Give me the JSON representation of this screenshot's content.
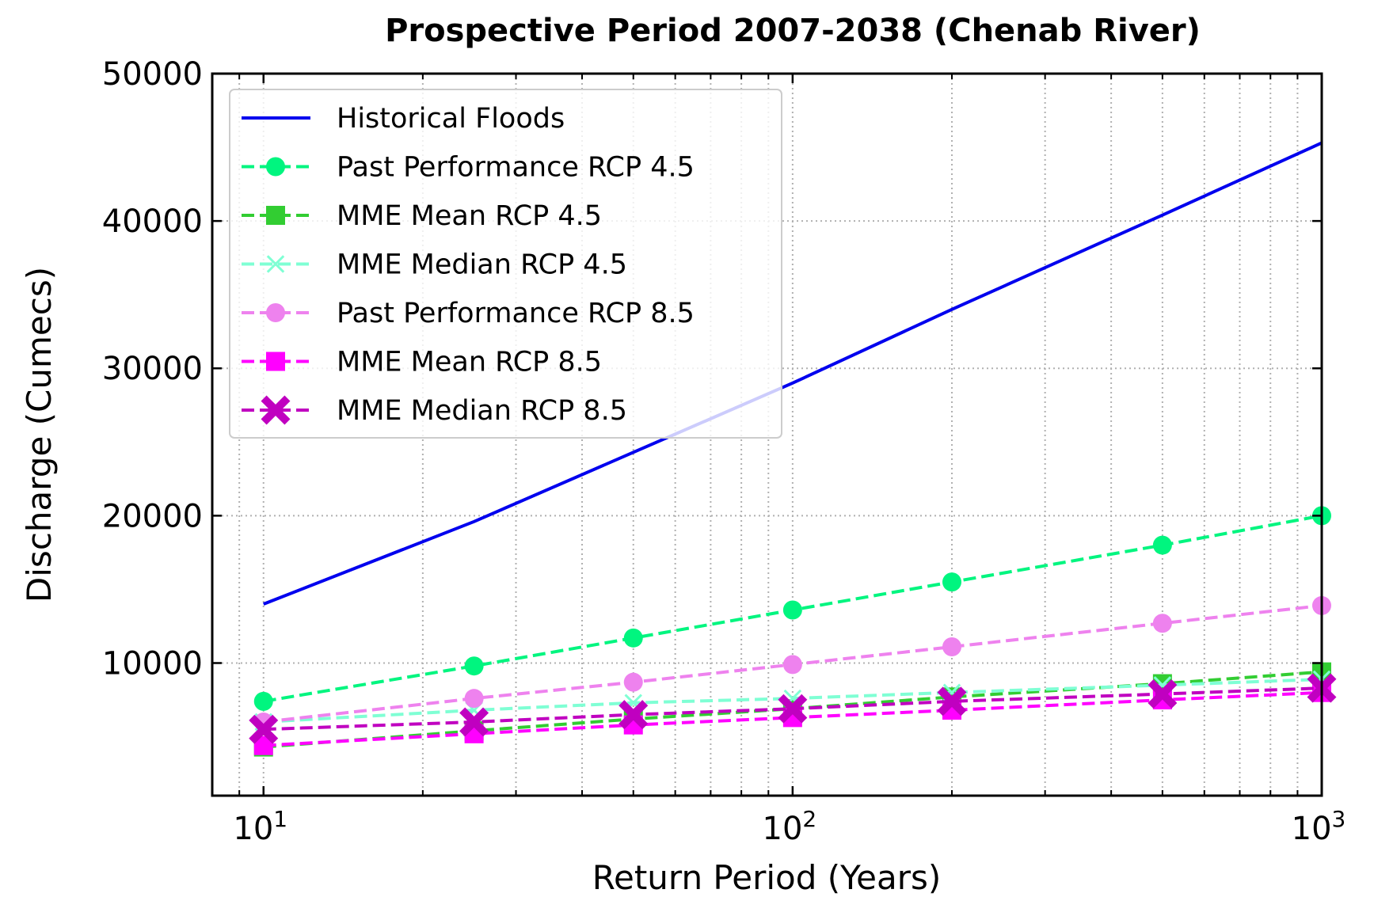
{
  "chart_data": {
    "type": "line",
    "title": "Prospective Period 2007-2038 (Chenab River)",
    "xlabel": "Return Period (Years)",
    "ylabel": "Discharge (Cumecs)",
    "x_scale": "log",
    "xlim": [
      8.0,
      1000
    ],
    "ylim": [
      1000,
      50000
    ],
    "x_ticks": [
      10,
      100,
      1000
    ],
    "x_tick_labels": [
      {
        "base": "10",
        "exp": "1"
      },
      {
        "base": "10",
        "exp": "2"
      },
      {
        "base": "10",
        "exp": "3"
      }
    ],
    "y_ticks": [
      10000,
      20000,
      30000,
      40000,
      50000
    ],
    "y_tick_labels": [
      "10000",
      "20000",
      "30000",
      "40000",
      "50000"
    ],
    "grid": true,
    "legend_position": "upper-left",
    "x": [
      10,
      25,
      50,
      100,
      200,
      500,
      1000
    ],
    "series": [
      {
        "name": "Historical Floods",
        "color": "#0000ee",
        "line": "solid",
        "marker": "none",
        "values": [
          14000,
          19600,
          24300,
          29000,
          34000,
          40400,
          45300
        ]
      },
      {
        "name": "Past Performance RCP 4.5",
        "color": "#00f57f",
        "line": "dashed",
        "marker": "circle",
        "values": [
          7400,
          9800,
          11700,
          13600,
          15500,
          18000,
          20000
        ]
      },
      {
        "name": "MME Mean RCP 4.5",
        "color": "#32cd32",
        "line": "dashed",
        "marker": "square",
        "values": [
          4300,
          5400,
          6200,
          6900,
          7700,
          8600,
          9400
        ]
      },
      {
        "name": "MME Median RCP 4.5",
        "color": "#7fffd4",
        "line": "dashed",
        "marker": "x",
        "values": [
          6000,
          6800,
          7300,
          7600,
          8000,
          8500,
          8900
        ]
      },
      {
        "name": "Past Performance RCP 8.5",
        "color": "#ee82ee",
        "line": "dashed",
        "marker": "circle",
        "values": [
          6000,
          7600,
          8700,
          9900,
          11100,
          12700,
          13900
        ]
      },
      {
        "name": "MME Mean RCP 8.5",
        "color": "#ff00ff",
        "line": "dashed",
        "marker": "square",
        "values": [
          4400,
          5200,
          5800,
          6300,
          6800,
          7500,
          8000
        ]
      },
      {
        "name": "MME Median RCP 8.5",
        "color": "#c000c0",
        "line": "dashed",
        "marker": "x-filled",
        "values": [
          5500,
          6000,
          6500,
          6900,
          7400,
          7900,
          8300
        ]
      }
    ]
  }
}
